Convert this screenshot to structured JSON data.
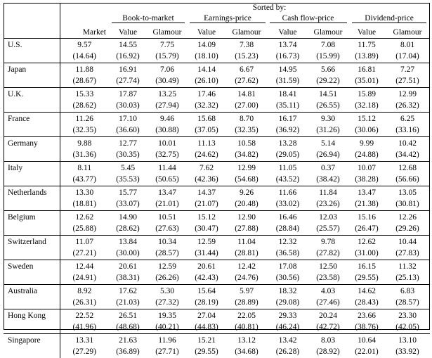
{
  "header": {
    "sorted_by": "Sorted by:",
    "market": "Market",
    "groups": [
      "Book-to-market",
      "Earnings-price",
      "Cash flow-price",
      "Dividend-price"
    ],
    "value": "Value",
    "glamour": "Glamour"
  },
  "rows": [
    {
      "country": "U.S.",
      "values": [
        "9.57",
        "14.55",
        "7.75",
        "14.09",
        "7.38",
        "13.74",
        "7.08",
        "11.75",
        "8.01"
      ],
      "tstats": [
        "(14.64)",
        "(16.92)",
        "(15.79)",
        "(18.10)",
        "(15.23)",
        "(16.73)",
        "(15.99)",
        "(13.89)",
        "(17.04)"
      ]
    },
    {
      "country": "Japan",
      "values": [
        "11.88",
        "16.91",
        "7.06",
        "14.14",
        "6.67",
        "14.95",
        "5.66",
        "16.81",
        "7.27"
      ],
      "tstats": [
        "(28.67)",
        "(27.74)",
        "(30.49)",
        "(26.10)",
        "(27.62)",
        "(31.59)",
        "(29.22)",
        "(35.01)",
        "(27.51)"
      ]
    },
    {
      "country": "U.K.",
      "values": [
        "15.33",
        "17.87",
        "13.25",
        "17.46",
        "14.81",
        "18.41",
        "14.51",
        "15.89",
        "12.99"
      ],
      "tstats": [
        "(28.62)",
        "(30.03)",
        "(27.94)",
        "(32.32)",
        "(27.00)",
        "(35.11)",
        "(26.55)",
        "(32.18)",
        "(26.32)"
      ]
    },
    {
      "country": "France",
      "values": [
        "11.26",
        "17.10",
        "9.46",
        "15.68",
        "8.70",
        "16.17",
        "9.30",
        "15.12",
        "6.25"
      ],
      "tstats": [
        "(32.35)",
        "(36.60)",
        "(30.88)",
        "(37.05)",
        "(32.35)",
        "(36.92)",
        "(31.26)",
        "(30.06)",
        "(33.16)"
      ]
    },
    {
      "country": "Germany",
      "values": [
        "9.88",
        "12.77",
        "10.01",
        "11.13",
        "10.58",
        "13.28",
        "5.14",
        "9.99",
        "10.42"
      ],
      "tstats": [
        "(31.36)",
        "(30.35)",
        "(32.75)",
        "(24.62)",
        "(34.82)",
        "(29.05)",
        "(26.94)",
        "(24.88)",
        "(34.42)"
      ]
    },
    {
      "country": "Italy",
      "values": [
        "8.11",
        "5.45",
        "11.44",
        "7.62",
        "12.99",
        "11.05",
        "0.37",
        "10.07",
        "12.68"
      ],
      "tstats": [
        "(43.77)",
        "(35.53)",
        "(50.65)",
        "(42.36)",
        "(54.68)",
        "(43.52)",
        "(38.42)",
        "(38.28)",
        "(56.66)"
      ]
    },
    {
      "country": "Netherlands",
      "values": [
        "13.30",
        "15.77",
        "13.47",
        "14.37",
        "9.26",
        "11.66",
        "11.84",
        "13.47",
        "13.05"
      ],
      "tstats": [
        "(18.81)",
        "(33.07)",
        "(21.01)",
        "(21.07)",
        "(20.48)",
        "(33.02)",
        "(23.26)",
        "(21.38)",
        "(30.81)"
      ]
    },
    {
      "country": "Belgium",
      "values": [
        "12.62",
        "14.90",
        "10.51",
        "15.12",
        "12.90",
        "16.46",
        "12.03",
        "15.16",
        "12.26"
      ],
      "tstats": [
        "(25.88)",
        "(28.62)",
        "(27.63)",
        "(30.47)",
        "(27.88)",
        "(28.84)",
        "(25.57)",
        "(26.47)",
        "(29.26)"
      ]
    },
    {
      "country": "Switzerland",
      "values": [
        "11.07",
        "13.84",
        "10.34",
        "12.59",
        "11.04",
        "12.32",
        "9.78",
        "12.62",
        "10.44"
      ],
      "tstats": [
        "(27.21)",
        "(30.00)",
        "(28.57)",
        "(31.44)",
        "(28.81)",
        "(36.58)",
        "(27.82)",
        "(31.00)",
        "(27.83)"
      ]
    },
    {
      "country": "Sweden",
      "values": [
        "12.44",
        "20.61",
        "12.59",
        "20.61",
        "12.42",
        "17.08",
        "12.50",
        "16.15",
        "11.32"
      ],
      "tstats": [
        "(24.91)",
        "(38.31)",
        "(26.26)",
        "(42.43)",
        "(24.76)",
        "(30.56)",
        "(23.58)",
        "(29.55)",
        "(25.13)"
      ]
    },
    {
      "country": "Australia",
      "values": [
        "8.92",
        "17.62",
        "5.30",
        "15.64",
        "5.97",
        "18.32",
        "4.03",
        "14.62",
        "6.83"
      ],
      "tstats": [
        "(26.31)",
        "(21.03)",
        "(27.32)",
        "(28.19)",
        "(28.89)",
        "(29.08)",
        "(27.46)",
        "(28.43)",
        "(28.57)"
      ]
    },
    {
      "country": "Hong Kong",
      "values": [
        "22.52",
        "26.51",
        "19.35",
        "27.04",
        "22.05",
        "29.33",
        "20.24",
        "23.66",
        "23.30"
      ],
      "tstats": [
        "(41.96)",
        "(48.68)",
        "(40.21)",
        "(44.83)",
        "(40.81)",
        "(46.24)",
        "(42.72)",
        "(38.76)",
        "(42.05)"
      ]
    },
    {
      "country": "Singapore",
      "values": [
        "13.31",
        "21.63",
        "11.96",
        "15.21",
        "13.12",
        "13.42",
        "8.03",
        "10.64",
        "13.10"
      ],
      "tstats": [
        "(27.29)",
        "(36.89)",
        "(27.71)",
        "(29.55)",
        "(34.68)",
        "(26.28)",
        "(28.92)",
        "(22.01)",
        "(33.92)"
      ]
    }
  ]
}
